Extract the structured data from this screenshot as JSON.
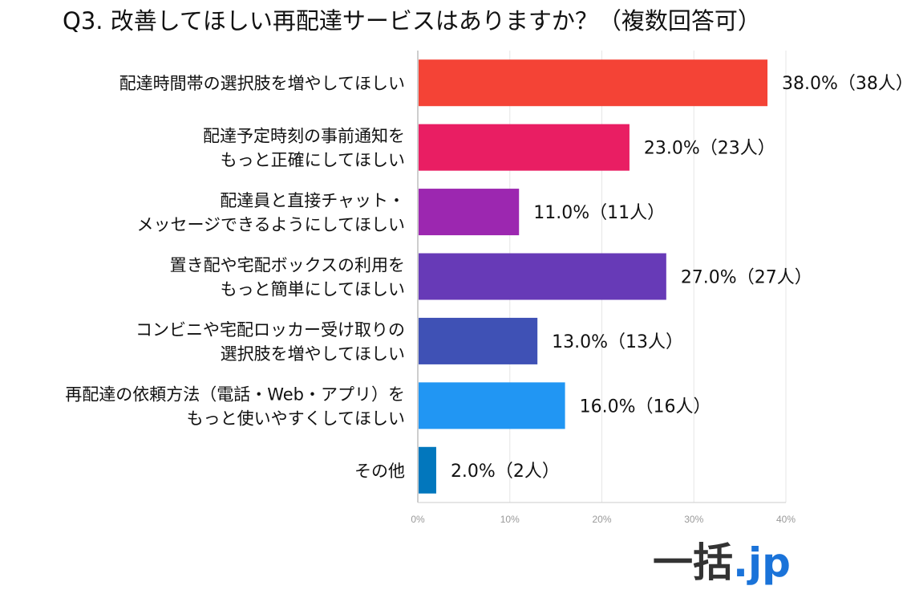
{
  "chart_data": {
    "type": "bar",
    "orientation": "horizontal",
    "title": "Q3. 改善してほしい再配達サービスはありますか？（複数回答可）",
    "categories": [
      [
        "配達時間帯の選択肢を増やしてほしい"
      ],
      [
        "配達予定時刻の事前通知を",
        "もっと正確にしてほしい"
      ],
      [
        "配達員と直接チャット・",
        "メッセージできるようにしてほしい"
      ],
      [
        "置き配や宅配ボックスの利用を",
        "もっと簡単にしてほしい"
      ],
      [
        "コンビニや宅配ロッカー受け取りの",
        "選択肢を増やしてほしい"
      ],
      [
        "再配達の依頼方法（電話・Web・アプリ）を",
        "もっと使いやすくしてほしい"
      ],
      [
        "その他"
      ]
    ],
    "values": [
      38.0,
      23.0,
      11.0,
      27.0,
      13.0,
      16.0,
      2.0
    ],
    "data_labels": [
      "38.0%（38人）",
      "23.0%（23人）",
      "11.0%（11人）",
      "27.0%（27人）",
      "13.0%（13人）",
      "16.0%（16人）",
      "2.0%（2人）"
    ],
    "bar_colors": [
      "#f44336",
      "#e91e63",
      "#9c27b0",
      "#673ab7",
      "#3f51b5",
      "#2196f3",
      "#0277bd"
    ],
    "xlim": [
      0,
      40
    ],
    "xticks": [
      0,
      10,
      20,
      30,
      40
    ],
    "xtick_labels": [
      "0%",
      "10%",
      "20%",
      "30%",
      "40%"
    ],
    "grid": true,
    "legend": "none"
  },
  "branding": {
    "logo_main": "一括",
    "logo_suffix": ".jp",
    "logo_suffix_color": "#1a73d9"
  }
}
